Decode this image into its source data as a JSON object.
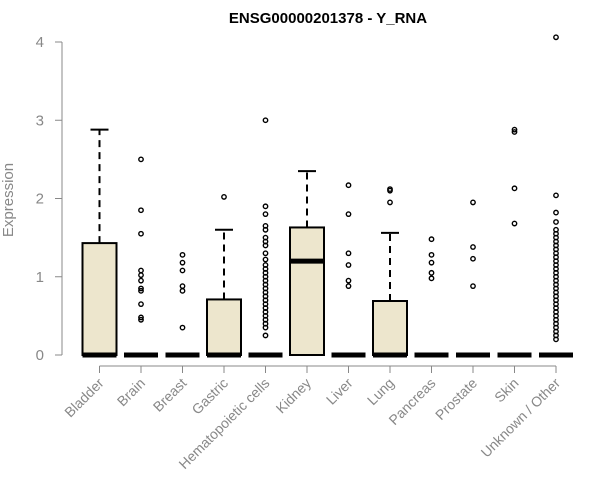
{
  "colors": {
    "box_fill": "#ede6cd",
    "box_stroke": "#000000",
    "axis": "#888888",
    "text": "#888888",
    "title": "#000000"
  },
  "chart_data": {
    "type": "boxplot",
    "title": "ENSG00000201378 - Y_RNA",
    "xlabel": "",
    "ylabel": "Expression",
    "ylim": [
      0,
      4
    ],
    "yticks": [
      "0",
      "1",
      "2",
      "3",
      "4"
    ],
    "grid": false,
    "categories": [
      "Bladder",
      "Brain",
      "Breast",
      "Gastric",
      "Hematopoietic cells",
      "Kidney",
      "Liver",
      "Lung",
      "Pancreas",
      "Prostate",
      "Skin",
      "Unknown / Other"
    ],
    "boxes": [
      {
        "category": "Bladder",
        "q1": 0,
        "median": 0,
        "q3": 1.43,
        "whisker_low": 0,
        "whisker_high": 2.88,
        "outliers": []
      },
      {
        "category": "Brain",
        "q1": 0,
        "median": 0,
        "q3": 0,
        "whisker_low": 0,
        "whisker_high": 0,
        "outliers": [
          2.5,
          1.85,
          1.55,
          1.08,
          1.02,
          0.95,
          0.85,
          0.82,
          0.65,
          0.48,
          0.45
        ]
      },
      {
        "category": "Breast",
        "q1": 0,
        "median": 0,
        "q3": 0,
        "whisker_low": 0,
        "whisker_high": 0,
        "outliers": [
          1.28,
          1.18,
          1.08,
          0.88,
          0.82,
          0.35
        ]
      },
      {
        "category": "Gastric",
        "q1": 0,
        "median": 0,
        "q3": 0.71,
        "whisker_low": 0,
        "whisker_high": 1.6,
        "outliers": [
          2.02
        ]
      },
      {
        "category": "Hematopoietic cells",
        "q1": 0,
        "median": 0,
        "q3": 0,
        "whisker_low": 0,
        "whisker_high": 0,
        "outliers": [
          3.0,
          1.9,
          1.8,
          1.65,
          1.6,
          1.5,
          1.45,
          1.4,
          1.3,
          1.22,
          1.15,
          1.1,
          1.05,
          1.0,
          0.95,
          0.9,
          0.85,
          0.8,
          0.75,
          0.7,
          0.65,
          0.6,
          0.55,
          0.5,
          0.45,
          0.4,
          0.35,
          0.25
        ]
      },
      {
        "category": "Kidney",
        "q1": 0,
        "median": 1.2,
        "q3": 1.63,
        "whisker_low": 0,
        "whisker_high": 2.35,
        "outliers": []
      },
      {
        "category": "Liver",
        "q1": 0,
        "median": 0,
        "q3": 0,
        "whisker_low": 0,
        "whisker_high": 0,
        "outliers": [
          2.17,
          1.8,
          1.3,
          1.15,
          0.95,
          0.88
        ]
      },
      {
        "category": "Lung",
        "q1": 0,
        "median": 0,
        "q3": 0.69,
        "whisker_low": 0,
        "whisker_high": 1.56,
        "outliers": [
          2.12,
          2.1,
          1.95
        ]
      },
      {
        "category": "Pancreas",
        "q1": 0,
        "median": 0,
        "q3": 0,
        "whisker_low": 0,
        "whisker_high": 0,
        "outliers": [
          1.48,
          1.28,
          1.18,
          1.05,
          0.98
        ]
      },
      {
        "category": "Prostate",
        "q1": 0,
        "median": 0,
        "q3": 0,
        "whisker_low": 0,
        "whisker_high": 0,
        "outliers": [
          1.95,
          1.38,
          1.23,
          0.88
        ]
      },
      {
        "category": "Skin",
        "q1": 0,
        "median": 0,
        "q3": 0,
        "whisker_low": 0,
        "whisker_high": 0,
        "outliers": [
          2.88,
          2.85,
          2.13,
          1.68
        ]
      },
      {
        "category": "Unknown / Other",
        "q1": 0,
        "median": 0,
        "q3": 0,
        "whisker_low": 0,
        "whisker_high": 0,
        "outliers": [
          4.06,
          2.04,
          1.82,
          1.7,
          1.6,
          1.55,
          1.5,
          1.45,
          1.4,
          1.35,
          1.3,
          1.25,
          1.2,
          1.15,
          1.1,
          1.05,
          1.0,
          0.95,
          0.9,
          0.85,
          0.8,
          0.75,
          0.7,
          0.65,
          0.6,
          0.55,
          0.5,
          0.45,
          0.4,
          0.35,
          0.3,
          0.25,
          0.2
        ]
      }
    ]
  }
}
